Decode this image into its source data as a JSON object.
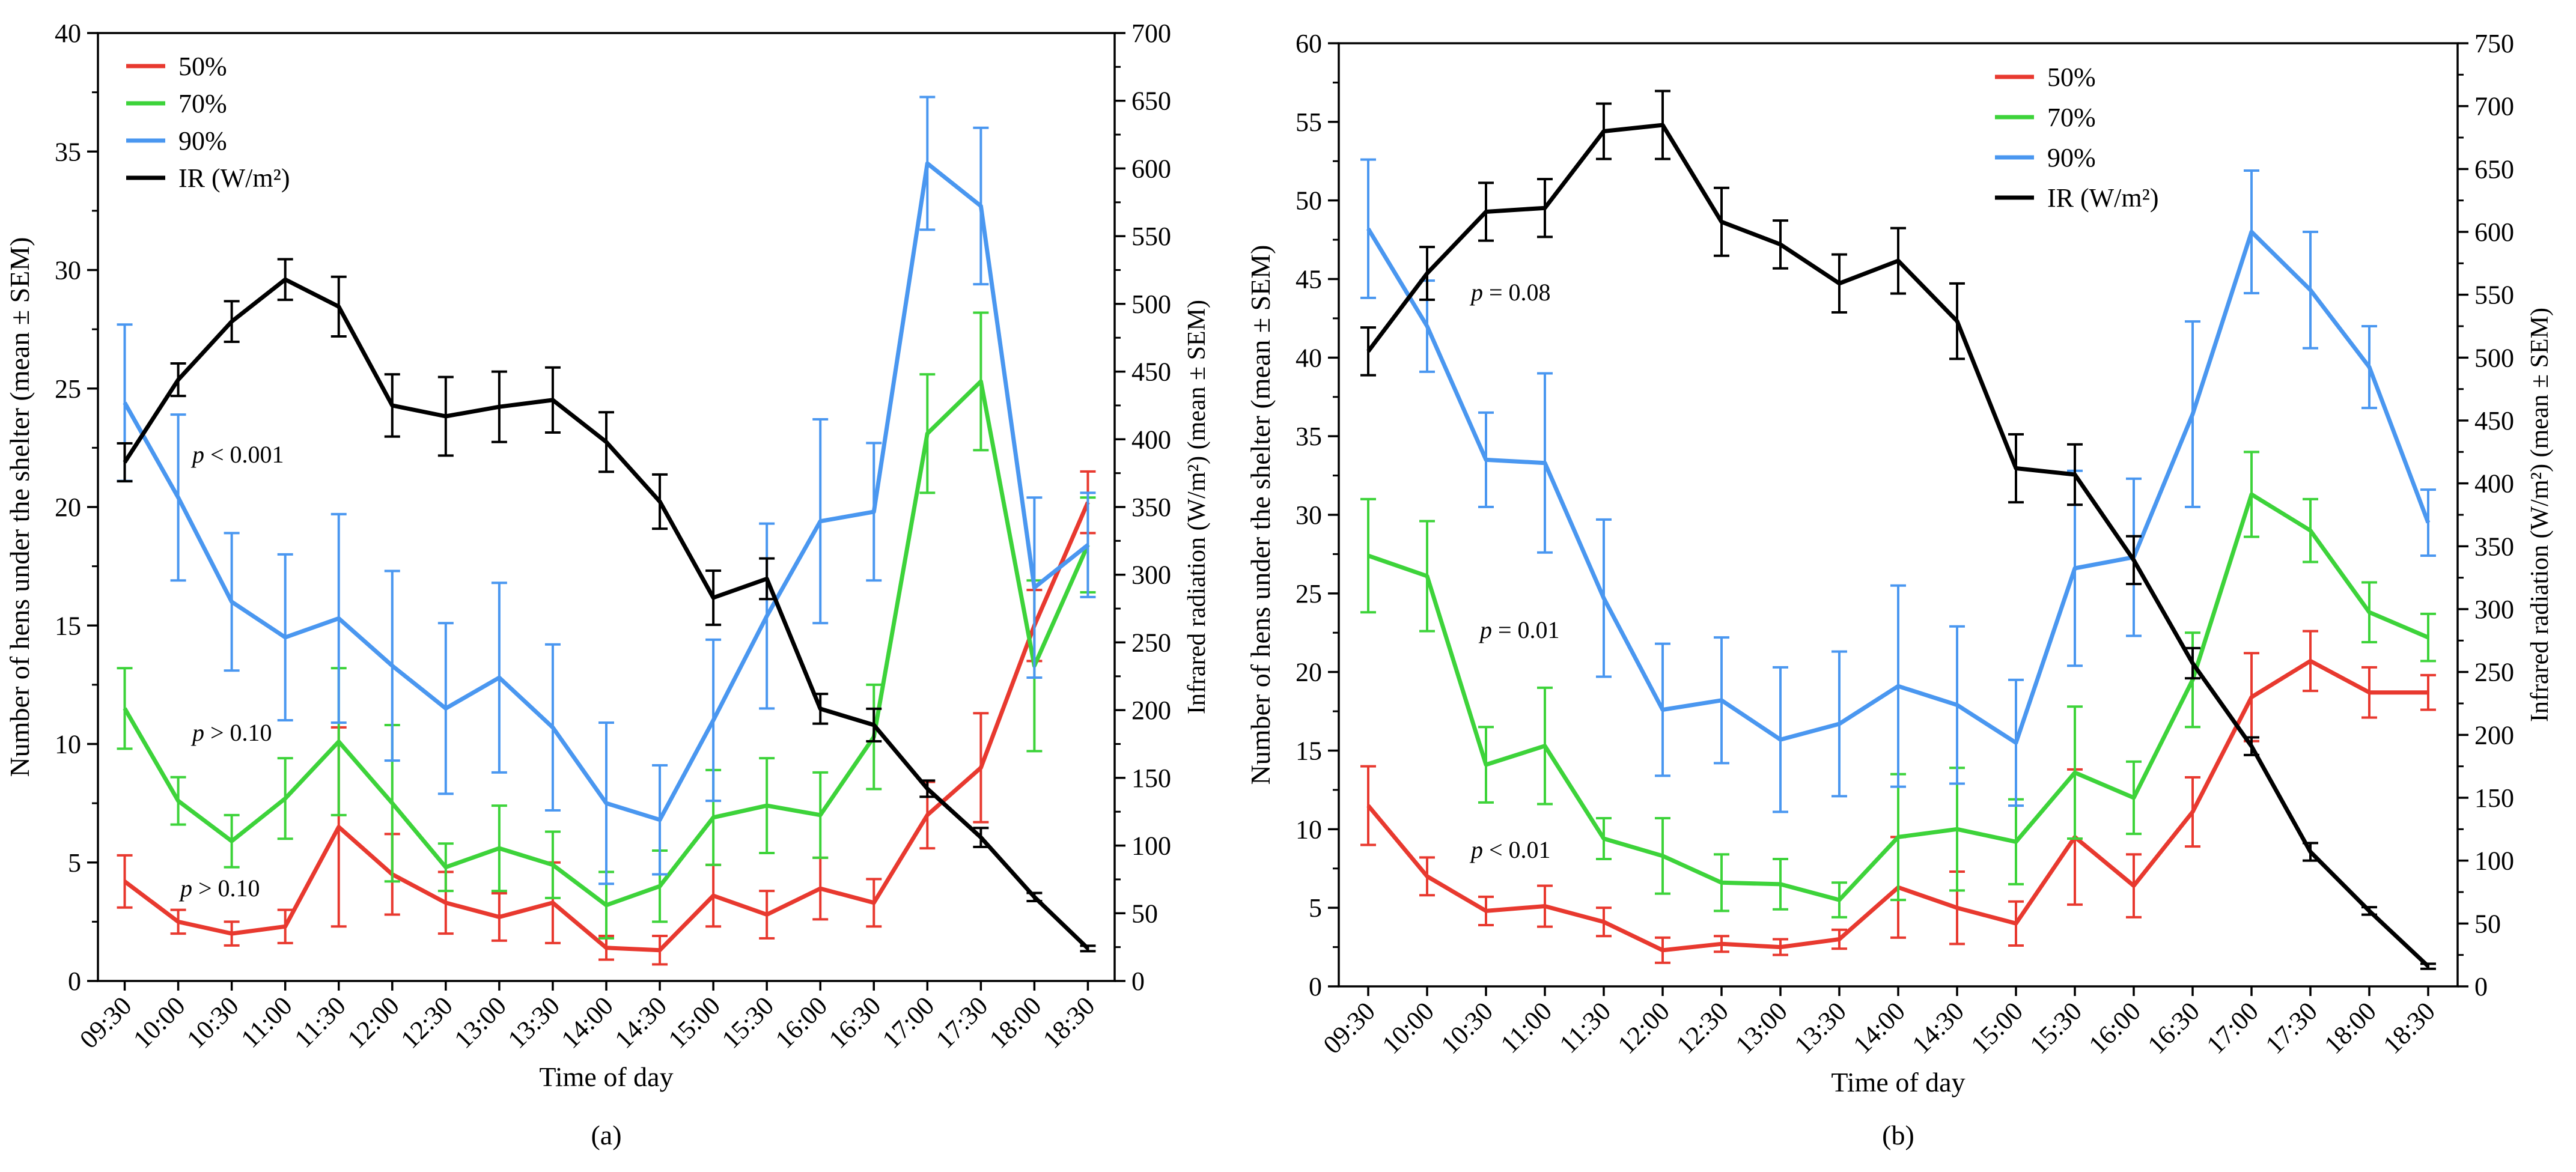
{
  "chart_data": [
    {
      "type": "line",
      "panel_label": "(a)",
      "xlabel": "Time of day",
      "ylabel": "Number of hens under the shelter (mean ± SEM)",
      "y2label": "Infrared radiation (W/m²) (mean ± SEM)",
      "ylim": [
        0,
        40
      ],
      "y2lim": [
        0,
        700
      ],
      "yticks": [
        0,
        5,
        10,
        15,
        20,
        25,
        30,
        35,
        40
      ],
      "y2ticks": [
        0,
        50,
        100,
        150,
        200,
        250,
        300,
        350,
        400,
        450,
        500,
        550,
        600,
        650,
        700
      ],
      "legend_position": "top-left",
      "categories": [
        "09:30",
        "10:00",
        "10:30",
        "11:00",
        "11:30",
        "12:00",
        "12:30",
        "13:00",
        "13:30",
        "14:00",
        "14:30",
        "15:00",
        "15:30",
        "16:00",
        "16:30",
        "17:00",
        "17:30",
        "18:00",
        "18:30"
      ],
      "series": [
        {
          "name": "50%",
          "color": "#e8392f",
          "axis": "left",
          "values": [
            4.2,
            2.5,
            2.0,
            2.3,
            6.5,
            4.5,
            3.3,
            2.7,
            3.3,
            1.4,
            1.3,
            3.6,
            2.8,
            3.9,
            3.3,
            7.0,
            9.0,
            15.0,
            20.2
          ],
          "errors": [
            1.1,
            0.5,
            0.5,
            0.7,
            4.2,
            1.7,
            1.3,
            1.0,
            1.7,
            0.5,
            0.6,
            1.3,
            1.0,
            1.3,
            1.0,
            1.4,
            2.3,
            1.5,
            1.3
          ]
        },
        {
          "name": "70%",
          "color": "#3dd33a",
          "axis": "left",
          "values": [
            11.5,
            7.6,
            5.9,
            7.7,
            10.1,
            7.5,
            4.8,
            5.6,
            4.9,
            3.2,
            4.0,
            6.9,
            7.4,
            7.0,
            10.3,
            23.1,
            25.3,
            13.3,
            18.4
          ],
          "errors": [
            1.7,
            1.0,
            1.1,
            1.7,
            3.1,
            3.3,
            1.0,
            1.8,
            1.4,
            1.4,
            1.5,
            2.0,
            2.0,
            1.8,
            2.2,
            2.5,
            2.9,
            3.6,
            2.0
          ]
        },
        {
          "name": "90%",
          "color": "#4a97f0",
          "axis": "left",
          "values": [
            24.4,
            20.4,
            16.0,
            14.5,
            15.3,
            13.3,
            11.5,
            12.8,
            10.7,
            7.5,
            6.8,
            11.0,
            15.4,
            19.4,
            19.8,
            34.5,
            32.7,
            16.6,
            18.4
          ],
          "errors": [
            3.3,
            3.5,
            2.9,
            3.5,
            4.4,
            4.0,
            3.6,
            4.0,
            3.5,
            3.4,
            2.3,
            3.4,
            3.9,
            4.3,
            2.9,
            2.8,
            3.3,
            3.8,
            2.2
          ]
        },
        {
          "name": "IR (W/m²)",
          "color": "#000000",
          "axis": "right",
          "values": [
            383,
            444,
            487,
            518,
            498,
            425,
            417,
            424,
            429,
            398,
            354,
            283,
            297,
            201,
            189,
            142,
            106,
            62,
            24
          ],
          "errors": [
            14,
            12,
            15,
            15,
            22,
            23,
            29,
            26,
            24,
            22,
            20,
            20,
            15,
            11,
            12,
            6,
            7,
            3,
            2
          ]
        }
      ],
      "annotations": [
        {
          "text": "p < 0.001",
          "series": "90%"
        },
        {
          "text": "p > 0.10",
          "series": "70%"
        },
        {
          "text": "p > 0.10",
          "series": "50%"
        }
      ]
    },
    {
      "type": "line",
      "panel_label": "(b)",
      "xlabel": "Time of day",
      "ylabel": "Number of hens under the shelter (mean ± SEM)",
      "y2label": "Infrared radiation (W/m²) (mean ± SEM)",
      "ylim": [
        0,
        60
      ],
      "y2lim": [
        0,
        750
      ],
      "yticks": [
        0,
        5,
        10,
        15,
        20,
        25,
        30,
        35,
        40,
        45,
        50,
        55,
        60
      ],
      "y2ticks": [
        0,
        50,
        100,
        150,
        200,
        250,
        300,
        350,
        400,
        450,
        500,
        550,
        600,
        650,
        700,
        750
      ],
      "legend_position": "top-center",
      "categories": [
        "09:30",
        "10:00",
        "10:30",
        "11:00",
        "11:30",
        "12:00",
        "12:30",
        "13:00",
        "13:30",
        "14:00",
        "14:30",
        "15:00",
        "15:30",
        "16:00",
        "16:30",
        "17:00",
        "17:30",
        "18:00",
        "18:30"
      ],
      "series": [
        {
          "name": "50%",
          "color": "#e8392f",
          "axis": "left",
          "values": [
            11.5,
            7.0,
            4.8,
            5.1,
            4.1,
            2.3,
            2.7,
            2.5,
            3.0,
            6.3,
            5.0,
            4.0,
            9.5,
            6.4,
            11.1,
            18.4,
            20.7,
            18.7,
            18.7
          ],
          "errors": [
            2.5,
            1.2,
            0.9,
            1.3,
            0.9,
            0.8,
            0.5,
            0.5,
            0.6,
            3.2,
            2.3,
            1.4,
            4.3,
            2.0,
            2.2,
            2.8,
            1.9,
            1.6,
            1.1
          ]
        },
        {
          "name": "70%",
          "color": "#3dd33a",
          "axis": "left",
          "values": [
            27.4,
            26.1,
            14.1,
            15.3,
            9.4,
            8.3,
            6.6,
            6.5,
            5.5,
            9.5,
            10.0,
            9.2,
            13.6,
            12.0,
            19.5,
            31.3,
            29.0,
            23.8,
            22.2
          ],
          "errors": [
            3.6,
            3.5,
            2.4,
            3.7,
            1.3,
            2.4,
            1.8,
            1.6,
            1.1,
            4.0,
            3.9,
            2.7,
            4.2,
            2.3,
            3.0,
            2.7,
            2.0,
            1.9,
            1.5
          ]
        },
        {
          "name": "90%",
          "color": "#4a97f0",
          "axis": "left",
          "values": [
            48.2,
            42.0,
            33.5,
            33.3,
            24.7,
            17.6,
            18.2,
            15.7,
            16.7,
            19.1,
            17.9,
            15.5,
            26.6,
            27.3,
            36.4,
            48.0,
            44.3,
            39.4,
            29.5
          ],
          "errors": [
            4.4,
            2.9,
            3.0,
            5.7,
            5.0,
            4.2,
            4.0,
            4.6,
            4.6,
            6.4,
            5.0,
            4.0,
            6.2,
            5.0,
            5.9,
            3.9,
            3.7,
            2.6,
            2.1
          ]
        },
        {
          "name": "IR (W/m²)",
          "color": "#000000",
          "axis": "right",
          "values": [
            505,
            567,
            616,
            619,
            680,
            685,
            608,
            590,
            559,
            577,
            529,
            412,
            407,
            339,
            257,
            191,
            107,
            60,
            16
          ],
          "errors": [
            19,
            21,
            23,
            23,
            22,
            27,
            27,
            19,
            23,
            26,
            30,
            27,
            24,
            19,
            12,
            7,
            7,
            3,
            2
          ]
        }
      ],
      "annotations": [
        {
          "text": "p = 0.08",
          "series": "90%"
        },
        {
          "text": "p = 0.01",
          "series": "70%"
        },
        {
          "text": "p < 0.01",
          "series": "50%"
        }
      ]
    }
  ]
}
